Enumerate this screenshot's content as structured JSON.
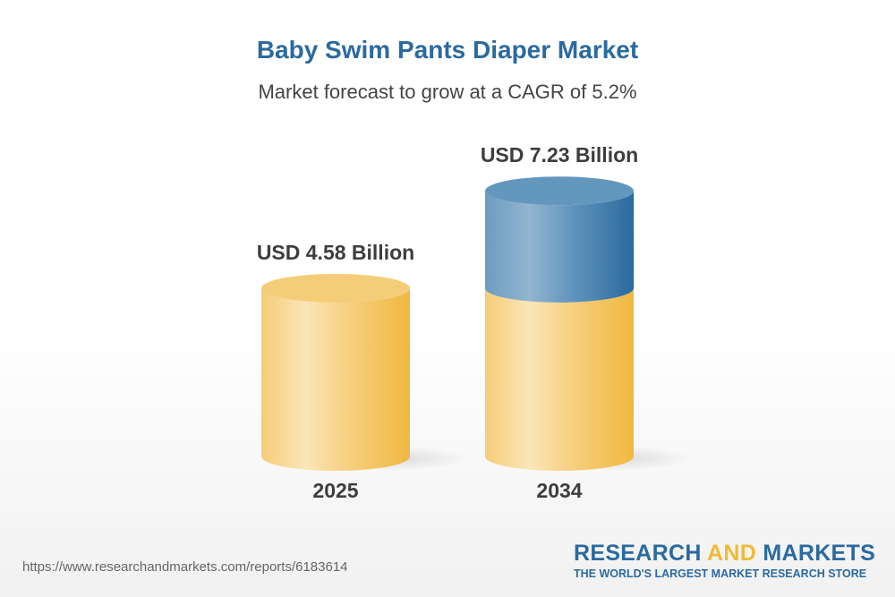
{
  "header": {
    "title": "Baby Swim Pants Diaper Market",
    "subtitle": "Market forecast to grow at a CAGR of 5.2%"
  },
  "chart_data": {
    "type": "bar",
    "style": "3d-cylinder",
    "title": "Baby Swim Pants Diaper Market",
    "subtitle": "Market forecast to grow at a CAGR of 5.2%",
    "categories": [
      "2025",
      "2034"
    ],
    "values": [
      4.58,
      7.23
    ],
    "unit": "USD Billion",
    "data_labels": [
      "USD 4.58 Billion",
      "USD 7.23 Billion"
    ],
    "cagr_percent": 5.2,
    "colors": {
      "base": "#f2b937",
      "growth": "#2b6a9f"
    },
    "grid": false,
    "legend": "none"
  },
  "footer": {
    "url": "https://www.researchandmarkets.com/reports/6183614",
    "logo_word1": "RESEARCH",
    "logo_word2": "AND",
    "logo_word3": "MARKETS",
    "logo_tagline": "THE WORLD'S LARGEST MARKET RESEARCH STORE"
  }
}
